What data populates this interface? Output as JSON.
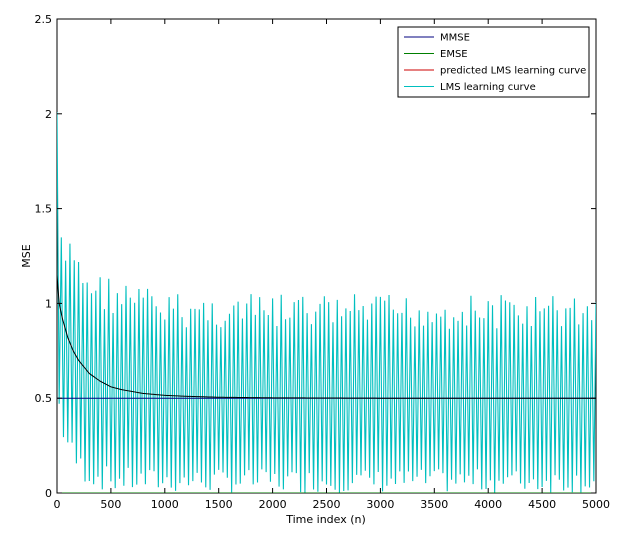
{
  "chart_data": {
    "type": "line",
    "xlabel": "Time index (n)",
    "ylabel": "MSE",
    "xlim": [
      0,
      5000
    ],
    "ylim": [
      0,
      2.5
    ],
    "grid": false,
    "legend_position": "top-right",
    "x_ticks": [
      0,
      500,
      1000,
      1500,
      2000,
      2500,
      3000,
      3500,
      4000,
      4500,
      5000
    ],
    "x_tick_labels": [
      "0",
      "500",
      "1000",
      "1500",
      "2000",
      "2500",
      "3000",
      "3500",
      "4000",
      "4500",
      "5000"
    ],
    "y_ticks": [
      0,
      0.5,
      1,
      1.5,
      2,
      2.5
    ],
    "y_tick_labels": [
      "0",
      "0.5",
      "1",
      "1.5",
      "2",
      "2.5"
    ],
    "series": [
      {
        "name": "MMSE",
        "color": "#00007f",
        "kind": "constant",
        "value": 0.5
      },
      {
        "name": "EMSE",
        "color": "#007f00",
        "kind": "constant",
        "value": 0.0
      },
      {
        "name": "predicted LMS learning curve",
        "color": "#000000",
        "kind": "decay",
        "x": [
          0,
          20,
          50,
          100,
          150,
          200,
          300,
          400,
          500,
          600,
          700,
          800,
          1000,
          1200,
          1500,
          2000,
          2500,
          3000,
          4000,
          5000
        ],
        "y": [
          1.15,
          1.0,
          0.92,
          0.82,
          0.75,
          0.7,
          0.63,
          0.59,
          0.56,
          0.545,
          0.535,
          0.525,
          0.515,
          0.51,
          0.505,
          0.502,
          0.501,
          0.5,
          0.5,
          0.5
        ]
      },
      {
        "name": "LMS learning curve",
        "color": "#00bfbf",
        "kind": "oscillating",
        "x": [
          0,
          10,
          20,
          50,
          100,
          150,
          200,
          300,
          500,
          800,
          1000,
          1500,
          2000,
          3000,
          4000,
          5000
        ],
        "upper": [
          2.15,
          2.05,
          1.45,
          1.33,
          1.3,
          1.38,
          1.28,
          1.2,
          1.15,
          1.1,
          1.06,
          1.05,
          1.05,
          1.05,
          1.05,
          1.05
        ],
        "lower": [
          0.55,
          0.5,
          0.4,
          0.28,
          0.2,
          0.12,
          0.08,
          0.03,
          0.0,
          0.0,
          0.0,
          0.0,
          0.0,
          0.0,
          0.0,
          0.0
        ],
        "period": 40
      }
    ]
  }
}
